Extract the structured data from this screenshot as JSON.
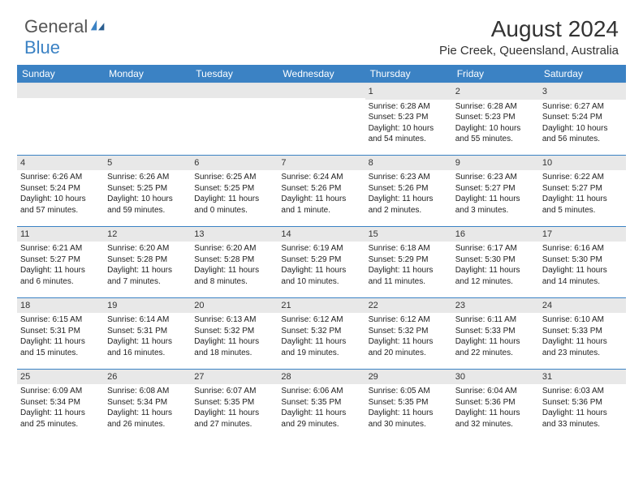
{
  "logo": {
    "text1": "General",
    "text2": "Blue"
  },
  "title": "August 2024",
  "location": "Pie Creek, Queensland, Australia",
  "colors": {
    "header_bg": "#3b82c4",
    "header_text": "#ffffff",
    "daynum_bg": "#e8e8e8",
    "row_border": "#3b82c4",
    "page_bg": "#ffffff",
    "text": "#222222",
    "logo_blue": "#3b82c4",
    "logo_gray": "#555555"
  },
  "weekdays": [
    "Sunday",
    "Monday",
    "Tuesday",
    "Wednesday",
    "Thursday",
    "Friday",
    "Saturday"
  ],
  "weeks": [
    [
      null,
      null,
      null,
      null,
      {
        "n": "1",
        "sr": "Sunrise: 6:28 AM",
        "ss": "Sunset: 5:23 PM",
        "d1": "Daylight: 10 hours",
        "d2": "and 54 minutes."
      },
      {
        "n": "2",
        "sr": "Sunrise: 6:28 AM",
        "ss": "Sunset: 5:23 PM",
        "d1": "Daylight: 10 hours",
        "d2": "and 55 minutes."
      },
      {
        "n": "3",
        "sr": "Sunrise: 6:27 AM",
        "ss": "Sunset: 5:24 PM",
        "d1": "Daylight: 10 hours",
        "d2": "and 56 minutes."
      }
    ],
    [
      {
        "n": "4",
        "sr": "Sunrise: 6:26 AM",
        "ss": "Sunset: 5:24 PM",
        "d1": "Daylight: 10 hours",
        "d2": "and 57 minutes."
      },
      {
        "n": "5",
        "sr": "Sunrise: 6:26 AM",
        "ss": "Sunset: 5:25 PM",
        "d1": "Daylight: 10 hours",
        "d2": "and 59 minutes."
      },
      {
        "n": "6",
        "sr": "Sunrise: 6:25 AM",
        "ss": "Sunset: 5:25 PM",
        "d1": "Daylight: 11 hours",
        "d2": "and 0 minutes."
      },
      {
        "n": "7",
        "sr": "Sunrise: 6:24 AM",
        "ss": "Sunset: 5:26 PM",
        "d1": "Daylight: 11 hours",
        "d2": "and 1 minute."
      },
      {
        "n": "8",
        "sr": "Sunrise: 6:23 AM",
        "ss": "Sunset: 5:26 PM",
        "d1": "Daylight: 11 hours",
        "d2": "and 2 minutes."
      },
      {
        "n": "9",
        "sr": "Sunrise: 6:23 AM",
        "ss": "Sunset: 5:27 PM",
        "d1": "Daylight: 11 hours",
        "d2": "and 3 minutes."
      },
      {
        "n": "10",
        "sr": "Sunrise: 6:22 AM",
        "ss": "Sunset: 5:27 PM",
        "d1": "Daylight: 11 hours",
        "d2": "and 5 minutes."
      }
    ],
    [
      {
        "n": "11",
        "sr": "Sunrise: 6:21 AM",
        "ss": "Sunset: 5:27 PM",
        "d1": "Daylight: 11 hours",
        "d2": "and 6 minutes."
      },
      {
        "n": "12",
        "sr": "Sunrise: 6:20 AM",
        "ss": "Sunset: 5:28 PM",
        "d1": "Daylight: 11 hours",
        "d2": "and 7 minutes."
      },
      {
        "n": "13",
        "sr": "Sunrise: 6:20 AM",
        "ss": "Sunset: 5:28 PM",
        "d1": "Daylight: 11 hours",
        "d2": "and 8 minutes."
      },
      {
        "n": "14",
        "sr": "Sunrise: 6:19 AM",
        "ss": "Sunset: 5:29 PM",
        "d1": "Daylight: 11 hours",
        "d2": "and 10 minutes."
      },
      {
        "n": "15",
        "sr": "Sunrise: 6:18 AM",
        "ss": "Sunset: 5:29 PM",
        "d1": "Daylight: 11 hours",
        "d2": "and 11 minutes."
      },
      {
        "n": "16",
        "sr": "Sunrise: 6:17 AM",
        "ss": "Sunset: 5:30 PM",
        "d1": "Daylight: 11 hours",
        "d2": "and 12 minutes."
      },
      {
        "n": "17",
        "sr": "Sunrise: 6:16 AM",
        "ss": "Sunset: 5:30 PM",
        "d1": "Daylight: 11 hours",
        "d2": "and 14 minutes."
      }
    ],
    [
      {
        "n": "18",
        "sr": "Sunrise: 6:15 AM",
        "ss": "Sunset: 5:31 PM",
        "d1": "Daylight: 11 hours",
        "d2": "and 15 minutes."
      },
      {
        "n": "19",
        "sr": "Sunrise: 6:14 AM",
        "ss": "Sunset: 5:31 PM",
        "d1": "Daylight: 11 hours",
        "d2": "and 16 minutes."
      },
      {
        "n": "20",
        "sr": "Sunrise: 6:13 AM",
        "ss": "Sunset: 5:32 PM",
        "d1": "Daylight: 11 hours",
        "d2": "and 18 minutes."
      },
      {
        "n": "21",
        "sr": "Sunrise: 6:12 AM",
        "ss": "Sunset: 5:32 PM",
        "d1": "Daylight: 11 hours",
        "d2": "and 19 minutes."
      },
      {
        "n": "22",
        "sr": "Sunrise: 6:12 AM",
        "ss": "Sunset: 5:32 PM",
        "d1": "Daylight: 11 hours",
        "d2": "and 20 minutes."
      },
      {
        "n": "23",
        "sr": "Sunrise: 6:11 AM",
        "ss": "Sunset: 5:33 PM",
        "d1": "Daylight: 11 hours",
        "d2": "and 22 minutes."
      },
      {
        "n": "24",
        "sr": "Sunrise: 6:10 AM",
        "ss": "Sunset: 5:33 PM",
        "d1": "Daylight: 11 hours",
        "d2": "and 23 minutes."
      }
    ],
    [
      {
        "n": "25",
        "sr": "Sunrise: 6:09 AM",
        "ss": "Sunset: 5:34 PM",
        "d1": "Daylight: 11 hours",
        "d2": "and 25 minutes."
      },
      {
        "n": "26",
        "sr": "Sunrise: 6:08 AM",
        "ss": "Sunset: 5:34 PM",
        "d1": "Daylight: 11 hours",
        "d2": "and 26 minutes."
      },
      {
        "n": "27",
        "sr": "Sunrise: 6:07 AM",
        "ss": "Sunset: 5:35 PM",
        "d1": "Daylight: 11 hours",
        "d2": "and 27 minutes."
      },
      {
        "n": "28",
        "sr": "Sunrise: 6:06 AM",
        "ss": "Sunset: 5:35 PM",
        "d1": "Daylight: 11 hours",
        "d2": "and 29 minutes."
      },
      {
        "n": "29",
        "sr": "Sunrise: 6:05 AM",
        "ss": "Sunset: 5:35 PM",
        "d1": "Daylight: 11 hours",
        "d2": "and 30 minutes."
      },
      {
        "n": "30",
        "sr": "Sunrise: 6:04 AM",
        "ss": "Sunset: 5:36 PM",
        "d1": "Daylight: 11 hours",
        "d2": "and 32 minutes."
      },
      {
        "n": "31",
        "sr": "Sunrise: 6:03 AM",
        "ss": "Sunset: 5:36 PM",
        "d1": "Daylight: 11 hours",
        "d2": "and 33 minutes."
      }
    ]
  ]
}
